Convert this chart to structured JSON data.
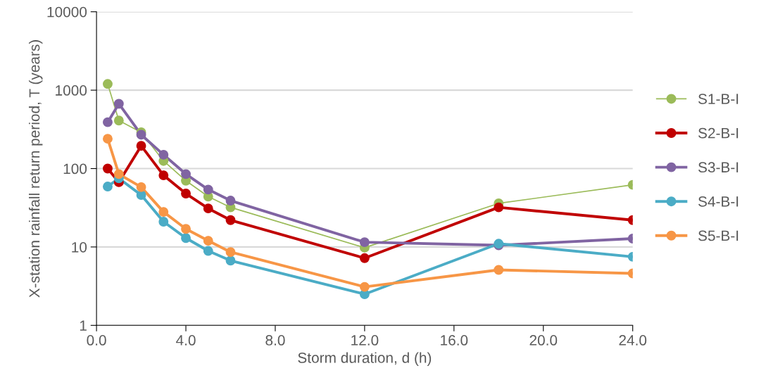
{
  "chart_data": {
    "type": "line",
    "xlabel": "Storm duration, d (h)",
    "ylabel": "X-station rainfall return period, T (years)",
    "x": [
      0.5,
      1,
      2,
      3,
      4,
      5,
      6,
      12,
      18,
      24
    ],
    "series": [
      {
        "name": "S1-B-I",
        "color": "#9bbb59",
        "values": [
          1200,
          410,
          290,
          125,
          70,
          44,
          32,
          9.8,
          36,
          62
        ]
      },
      {
        "name": "S2-B-I",
        "color": "#c00000",
        "values": [
          100,
          67,
          195,
          82,
          48,
          31,
          22,
          7.2,
          32,
          22
        ]
      },
      {
        "name": "S3-B-I",
        "color": "#8064a2",
        "values": [
          390,
          670,
          270,
          150,
          85,
          54,
          39,
          11.5,
          10.5,
          12.8
        ]
      },
      {
        "name": "S4-B-I",
        "color": "#4bacc6",
        "values": [
          59,
          75,
          46,
          21,
          13,
          8.9,
          6.7,
          2.5,
          11,
          7.5
        ]
      },
      {
        "name": "S5-B-I",
        "color": "#f79646",
        "values": [
          240,
          85,
          58,
          28,
          17,
          12,
          8.6,
          3.1,
          5.1,
          4.6
        ]
      }
    ],
    "log": true,
    "xlim": [
      0,
      24
    ],
    "ylim": [
      1,
      10000
    ],
    "xticks": [
      {
        "value": 0,
        "label": "0.0"
      },
      {
        "value": 4,
        "label": "4.0"
      },
      {
        "value": 8,
        "label": "8.0"
      },
      {
        "value": 12,
        "label": "12.0"
      },
      {
        "value": 16,
        "label": "16.0"
      },
      {
        "value": 20,
        "label": "20.0"
      },
      {
        "value": 24,
        "label": "24.0"
      }
    ],
    "yticks": [
      1,
      10,
      100,
      1000,
      10000
    ],
    "grid": "y",
    "legend": "right",
    "marker": "circle",
    "line_style": "solid"
  }
}
